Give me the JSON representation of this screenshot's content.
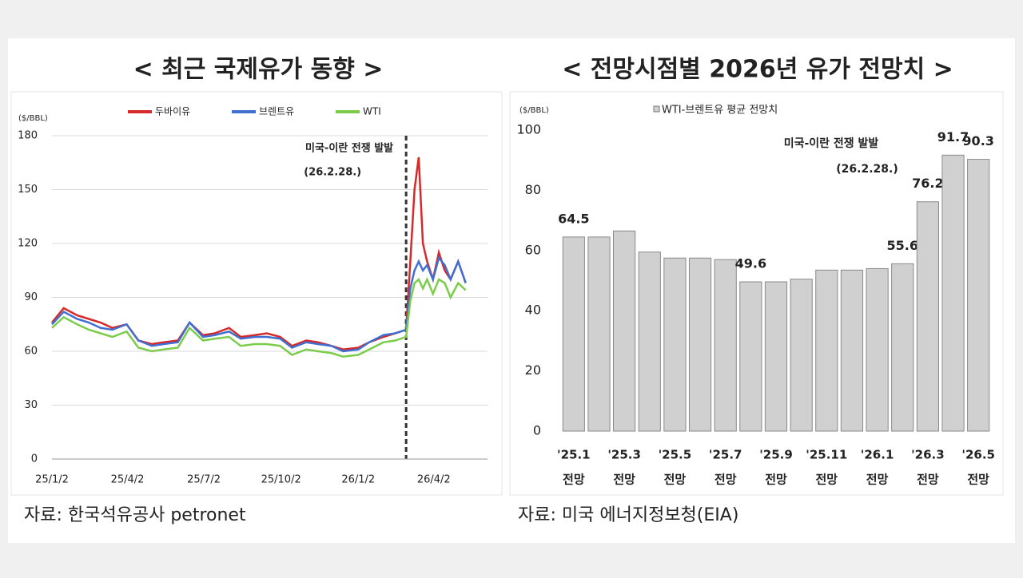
{
  "chart_data": [
    {
      "type": "line",
      "title": "< 최근 국제유가 동향 >",
      "y_unit": "($/BBL)",
      "annotation": [
        "미국-이란 전쟁 발발",
        "(26.2.28.)"
      ],
      "event_date": "26/2/28",
      "source": "자료: 한국석유공사 petronet",
      "x": [
        "25/1/2",
        "25/1/16",
        "25/2/1",
        "25/2/15",
        "25/3/1",
        "25/3/15",
        "25/4/1",
        "25/4/15",
        "25/5/1",
        "25/5/15",
        "25/6/1",
        "25/6/15",
        "25/7/1",
        "25/7/15",
        "25/8/1",
        "25/8/15",
        "25/9/1",
        "25/9/15",
        "25/10/1",
        "25/10/15",
        "25/11/1",
        "25/11/15",
        "25/12/1",
        "25/12/15",
        "26/1/2",
        "26/1/15",
        "26/2/1",
        "26/2/15",
        "26/2/28",
        "26/3/5",
        "26/3/10",
        "26/3/15",
        "26/3/20",
        "26/3/25",
        "26/4/1",
        "26/4/8",
        "26/4/15",
        "26/4/22",
        "26/5/1",
        "26/5/10"
      ],
      "series": [
        {
          "name": "두바이유",
          "color": "#d62a2a",
          "values": [
            76,
            84,
            80,
            78,
            76,
            73,
            75,
            66,
            64,
            65,
            66,
            76,
            69,
            70,
            73,
            68,
            69,
            70,
            68,
            63,
            66,
            65,
            63,
            61,
            62,
            65,
            68,
            70,
            72,
            110,
            150,
            168,
            120,
            110,
            100,
            115,
            105,
            100,
            110,
            98
          ]
        },
        {
          "name": "브렌트유",
          "color": "#3f6fd1",
          "values": [
            75,
            82,
            78,
            76,
            73,
            72,
            75,
            66,
            63,
            64,
            65,
            76,
            68,
            69,
            71,
            67,
            68,
            68,
            67,
            62,
            65,
            64,
            63,
            60,
            61,
            65,
            69,
            70,
            72,
            95,
            105,
            110,
            105,
            108,
            100,
            112,
            108,
            100,
            110,
            98
          ]
        },
        {
          "name": "WTI",
          "color": "#7ccc4c",
          "values": [
            73,
            79,
            75,
            72,
            70,
            68,
            71,
            62,
            60,
            61,
            62,
            73,
            66,
            67,
            68,
            63,
            64,
            64,
            63,
            58,
            61,
            60,
            59,
            57,
            58,
            61,
            65,
            66,
            68,
            88,
            98,
            100,
            95,
            100,
            92,
            100,
            98,
            90,
            98,
            94
          ]
        }
      ],
      "xlim": [
        "25/1/2",
        "26/6/5"
      ],
      "xticks": [
        "25/1/2",
        "25/4/2",
        "25/7/2",
        "25/10/2",
        "26/1/2",
        "26/4/2"
      ],
      "ylim": [
        0,
        180
      ],
      "yticks": [
        0,
        30,
        60,
        90,
        120,
        150,
        180
      ],
      "grid": true
    },
    {
      "type": "bar",
      "title": "< 전망시점별 2026년 유가 전망치 >",
      "y_unit": "($/BBL)",
      "legend": "WTI-브렌트유 평균 전망치",
      "color": "#d0d0d0",
      "annotation": [
        "미국-이란 전쟁 발발",
        "(26.2.28.)"
      ],
      "source": "자료: 미국 에너지정보청(EIA)",
      "categories": [
        [
          "'25.1",
          "전망"
        ],
        null,
        [
          "'25.3",
          "전망"
        ],
        null,
        [
          "'25.5",
          "전망"
        ],
        null,
        [
          "'25.7",
          "전망"
        ],
        null,
        [
          "'25.9",
          "전망"
        ],
        null,
        [
          "'25.11",
          "전망"
        ],
        null,
        [
          "'26.1",
          "전망"
        ],
        null,
        [
          "'26.3",
          "전망"
        ],
        null,
        [
          "'26.5",
          "전망"
        ]
      ],
      "values": [
        64.5,
        64.5,
        66.5,
        59.5,
        57.5,
        57.5,
        57,
        49.6,
        49.6,
        50.5,
        53.5,
        53.5,
        54,
        55.6,
        76.2,
        91.7,
        90.3
      ],
      "value_labels": [
        "64.5",
        null,
        null,
        null,
        null,
        null,
        null,
        "49.6",
        null,
        null,
        null,
        null,
        null,
        "55.6",
        "76.2",
        "91.7",
        "90.3"
      ],
      "ylim": [
        0,
        100
      ],
      "yticks": [
        0,
        20,
        40,
        60,
        80,
        100
      ],
      "grid": false
    }
  ]
}
